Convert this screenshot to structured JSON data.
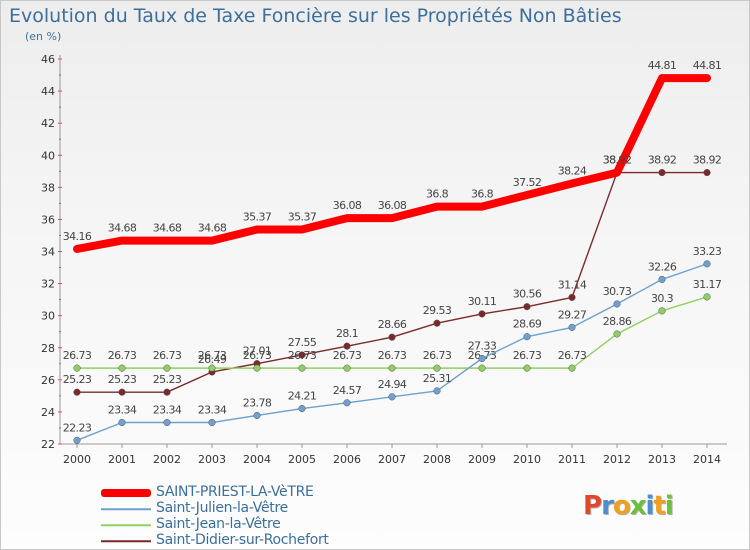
{
  "chart_data": {
    "type": "line",
    "title": "Evolution du Taux de Taxe Foncière sur les Propriétés Non Bâties",
    "ylabel": "(en %)",
    "xlabel": "",
    "ylim": [
      22,
      46
    ],
    "yticks": [
      22,
      24,
      26,
      28,
      30,
      32,
      34,
      36,
      38,
      40,
      42,
      44,
      46
    ],
    "x": [
      2000,
      2001,
      2002,
      2003,
      2004,
      2005,
      2006,
      2007,
      2008,
      2009,
      2010,
      2011,
      2012,
      2013,
      2014
    ],
    "series": [
      {
        "name": "SAINT-PRIEST-LA-VèTRE",
        "color": "#ff0000",
        "values": [
          34.16,
          34.68,
          34.68,
          34.68,
          35.37,
          35.37,
          36.08,
          36.08,
          36.8,
          36.8,
          37.52,
          38.24,
          38.92,
          44.81,
          44.81
        ],
        "labels": [
          "34.16",
          "34.68",
          "34.68",
          "34.68",
          "35.37",
          "35.37",
          "36.08",
          "36.08",
          "36.8",
          "36.8",
          "37.52",
          "38.24",
          "38.92",
          "44.81",
          "44.81"
        ]
      },
      {
        "name": "Saint-Julien-la-Vêtre",
        "color": "#6fa0cf",
        "values": [
          22.23,
          23.34,
          23.34,
          23.34,
          23.78,
          24.21,
          24.57,
          24.94,
          25.31,
          27.33,
          28.69,
          29.27,
          30.73,
          32.26,
          33.23
        ],
        "labels": [
          "22.23",
          "23.34",
          "23.34",
          "23.34",
          "23.78",
          "24.21",
          "24.57",
          "24.94",
          "25.31",
          "27.33",
          "28.69",
          "29.27",
          "30.73",
          "32.26",
          "33.23"
        ]
      },
      {
        "name": "Saint-Jean-la-Vêtre",
        "color": "#8fd060",
        "values": [
          26.73,
          26.73,
          26.73,
          26.73,
          26.73,
          26.73,
          26.73,
          26.73,
          26.73,
          26.73,
          26.73,
          26.73,
          28.86,
          30.3,
          31.17
        ],
        "labels": [
          "26.73",
          "26.73",
          "26.73",
          "26.73",
          "26.73",
          "26.73",
          "26.73",
          "26.73",
          "26.73",
          "26.73",
          "26.73",
          "26.73",
          "28.86",
          "30.3",
          "31.17"
        ]
      },
      {
        "name": "Saint-Didier-sur-Rochefort",
        "color": "#7a2a2a",
        "values": [
          25.23,
          25.23,
          25.23,
          26.49,
          27.01,
          27.55,
          28.1,
          28.66,
          29.53,
          30.11,
          30.56,
          31.14,
          38.92,
          38.92,
          38.92
        ],
        "labels": [
          "25.23",
          "25.23",
          "25.23",
          "26.49",
          "27.01",
          "27.55",
          "28.1",
          "28.66",
          "29.53",
          "30.11",
          "30.56",
          "31.14",
          "38.92",
          "38.92",
          "38.92"
        ]
      }
    ],
    "legend_position": "bottom-left",
    "grid": false
  },
  "logo": {
    "text": "Proxiti",
    "colors": [
      "#e2472a",
      "#4a8fd0",
      "#f0a020",
      "#6cbf3b",
      "#4a8fd0",
      "#f0a020",
      "#6cbf3b"
    ]
  }
}
